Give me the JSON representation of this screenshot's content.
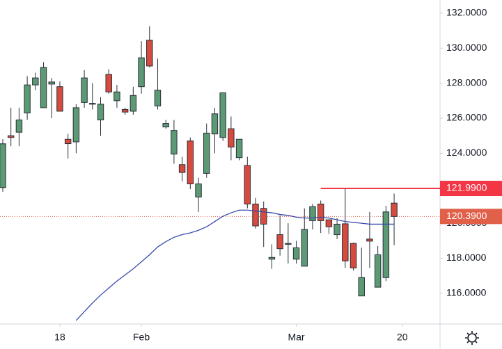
{
  "chart_data": {
    "type": "candlestick",
    "x": [
      0,
      1,
      2,
      3,
      4,
      5,
      6,
      7,
      8,
      9,
      10,
      11,
      12,
      13,
      14,
      15,
      16,
      17,
      18,
      19,
      20,
      21,
      22,
      23,
      24,
      25,
      26,
      27,
      28,
      29,
      30,
      31,
      32,
      33,
      34,
      35,
      36,
      37,
      38,
      39,
      40,
      41,
      42,
      43,
      44,
      45,
      46,
      47,
      48
    ],
    "open": [
      122.04,
      125.0,
      125.2,
      126.3,
      127.9,
      126.6,
      127.95,
      127.8,
      124.8,
      124.65,
      126.9,
      126.8,
      125.9,
      128.5,
      127.0,
      126.5,
      126.4,
      127.8,
      130.45,
      126.7,
      125.5,
      123.95,
      123.35,
      124.7,
      121.5,
      122.85,
      125.1,
      124.9,
      125.4,
      123.75,
      123.3,
      121.1,
      120.85,
      117.95,
      119.35,
      118.8,
      117.95,
      117.55,
      120.15,
      121.1,
      120.2,
      119.35,
      119.97,
      118.85,
      115.85,
      119.1,
      116.35,
      116.9,
      121.15
    ],
    "close": [
      124.54,
      124.9,
      125.9,
      127.9,
      128.3,
      128.9,
      128.07,
      126.4,
      124.55,
      126.6,
      128.3,
      126.85,
      126.8,
      127.5,
      127.5,
      126.35,
      127.3,
      129.45,
      128.98,
      127.6,
      125.7,
      125.3,
      122.9,
      122.25,
      122.25,
      125.15,
      126.25,
      127.45,
      124.35,
      124.8,
      121.1,
      119.85,
      119.95,
      118.05,
      118.55,
      118.85,
      118.6,
      119.65,
      120.95,
      120.15,
      119.8,
      119.95,
      117.85,
      117.45,
      116.9,
      118.98,
      118.2,
      120.65,
      120.39
    ],
    "high": [
      124.8,
      126.6,
      126.6,
      128.4,
      128.6,
      129.2,
      128.3,
      128.1,
      125.1,
      126.8,
      128.75,
      128.0,
      127.2,
      128.8,
      127.9,
      126.6,
      127.8,
      130.4,
      131.25,
      129.4,
      125.9,
      125.9,
      123.8,
      124.9,
      122.6,
      125.7,
      126.6,
      127.45,
      126.1,
      124.8,
      123.8,
      121.45,
      121.25,
      118.8,
      120.45,
      120.0,
      119.0,
      120.85,
      121.1,
      121.3,
      120.2,
      120.3,
      122.0,
      118.9,
      118.6,
      120.65,
      118.7,
      121.0,
      121.7
    ],
    "low": [
      121.8,
      124.4,
      124.4,
      125.9,
      127.6,
      126.6,
      126.0,
      126.4,
      123.7,
      124.0,
      126.6,
      126.5,
      125.0,
      127.4,
      126.6,
      126.2,
      126.2,
      127.4,
      128.9,
      126.5,
      125.4,
      123.4,
      122.4,
      121.95,
      120.65,
      122.6,
      124.0,
      124.7,
      123.6,
      123.6,
      120.85,
      119.7,
      118.65,
      117.4,
      118.15,
      117.7,
      117.7,
      117.55,
      119.65,
      119.45,
      119.4,
      119.1,
      117.45,
      117.3,
      115.85,
      117.45,
      116.35,
      116.7,
      118.75
    ],
    "up_color": "#5b9a74",
    "down_color": "#d64b3d",
    "moving_average": {
      "color": "#3949ab",
      "values": [
        null,
        null,
        null,
        null,
        null,
        null,
        null,
        null,
        null,
        114.45,
        114.95,
        115.45,
        115.9,
        116.3,
        116.7,
        117.05,
        117.4,
        117.8,
        118.2,
        118.65,
        118.95,
        119.2,
        119.35,
        119.45,
        119.6,
        119.8,
        120.1,
        120.4,
        120.6,
        120.75,
        120.75,
        120.7,
        120.65,
        120.6,
        120.5,
        120.45,
        120.35,
        120.3,
        120.3,
        120.35,
        120.3,
        120.2,
        120.1,
        120.05,
        120.0,
        119.95,
        119.95,
        119.95,
        119.95
      ]
    },
    "xlim": [
      -0.34,
      53.63
    ],
    "xticks": [
      {
        "value": 7,
        "label": "18"
      },
      {
        "value": 17,
        "label": "Feb"
      },
      {
        "value": 36,
        "label": "Mar"
      },
      {
        "value": 49,
        "label": "20"
      }
    ],
    "ylim": [
      114.25,
      132.75
    ],
    "yticks": [
      {
        "value": 116,
        "label": "116.0000"
      },
      {
        "value": 118,
        "label": "118.0000"
      },
      {
        "value": 120,
        "label": "120.0000"
      },
      {
        "value": 122,
        "label": "122.0000"
      },
      {
        "value": 124,
        "label": "124.0000"
      },
      {
        "value": 126,
        "label": "126.0000"
      },
      {
        "value": 128,
        "label": "128.0000"
      },
      {
        "value": 130,
        "label": "130.0000"
      },
      {
        "value": 132,
        "label": "132.0000"
      }
    ],
    "level": {
      "value": 121.99,
      "label": "121.9900",
      "color": "#f23645",
      "start_x": 39
    },
    "last_price": {
      "value": 120.39,
      "label": "120.3900",
      "color": "#e0604a"
    }
  }
}
